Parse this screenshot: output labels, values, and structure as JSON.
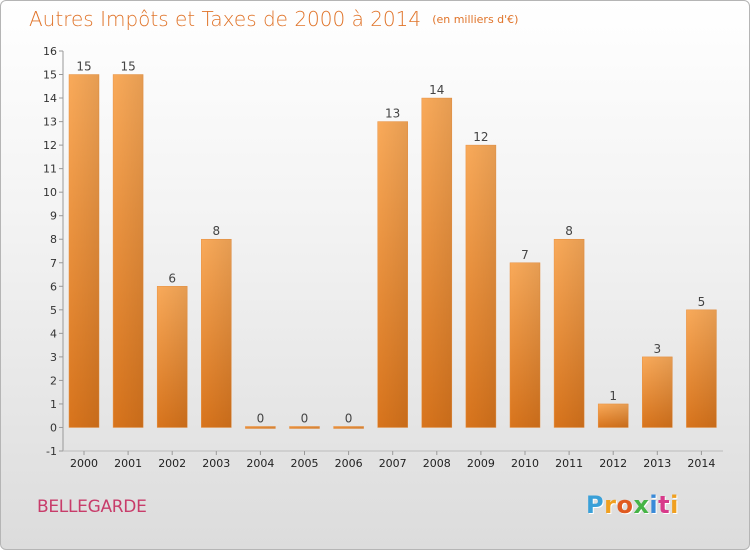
{
  "title": "Autres Impôts et Taxes de 2000 à 2014",
  "unit": "(en milliers d'€)",
  "commune": "BELLEGARDE",
  "logo": {
    "letters": [
      "P",
      "r",
      "o",
      "x",
      "i",
      "t",
      "i"
    ],
    "colors": [
      "#3aa0d8",
      "#f0a020",
      "#e05a20",
      "#46b446",
      "#3a8ad8",
      "#d83a8a",
      "#f0a020"
    ]
  },
  "colors": {
    "bar_light": "#f9aa5a",
    "bar_dark": "#dc7a20",
    "title": "#e0742a",
    "commune": "#c83c6a"
  },
  "chart_data": {
    "type": "bar",
    "categories": [
      "2000",
      "2001",
      "2002",
      "2003",
      "2004",
      "2005",
      "2006",
      "2007",
      "2008",
      "2009",
      "2010",
      "2011",
      "2012",
      "2013",
      "2014"
    ],
    "values": [
      15,
      15,
      6,
      8,
      0,
      0,
      0,
      13,
      14,
      12,
      7,
      8,
      1,
      3,
      5
    ],
    "title": "Autres Impôts et Taxes de 2000 à 2014",
    "xlabel": "",
    "ylabel": "",
    "ylim": [
      -1,
      16
    ],
    "yticks": [
      -1,
      0,
      1,
      2,
      3,
      4,
      5,
      6,
      7,
      8,
      9,
      10,
      11,
      12,
      13,
      14,
      15,
      16
    ],
    "grid": false,
    "data_labels": true
  }
}
